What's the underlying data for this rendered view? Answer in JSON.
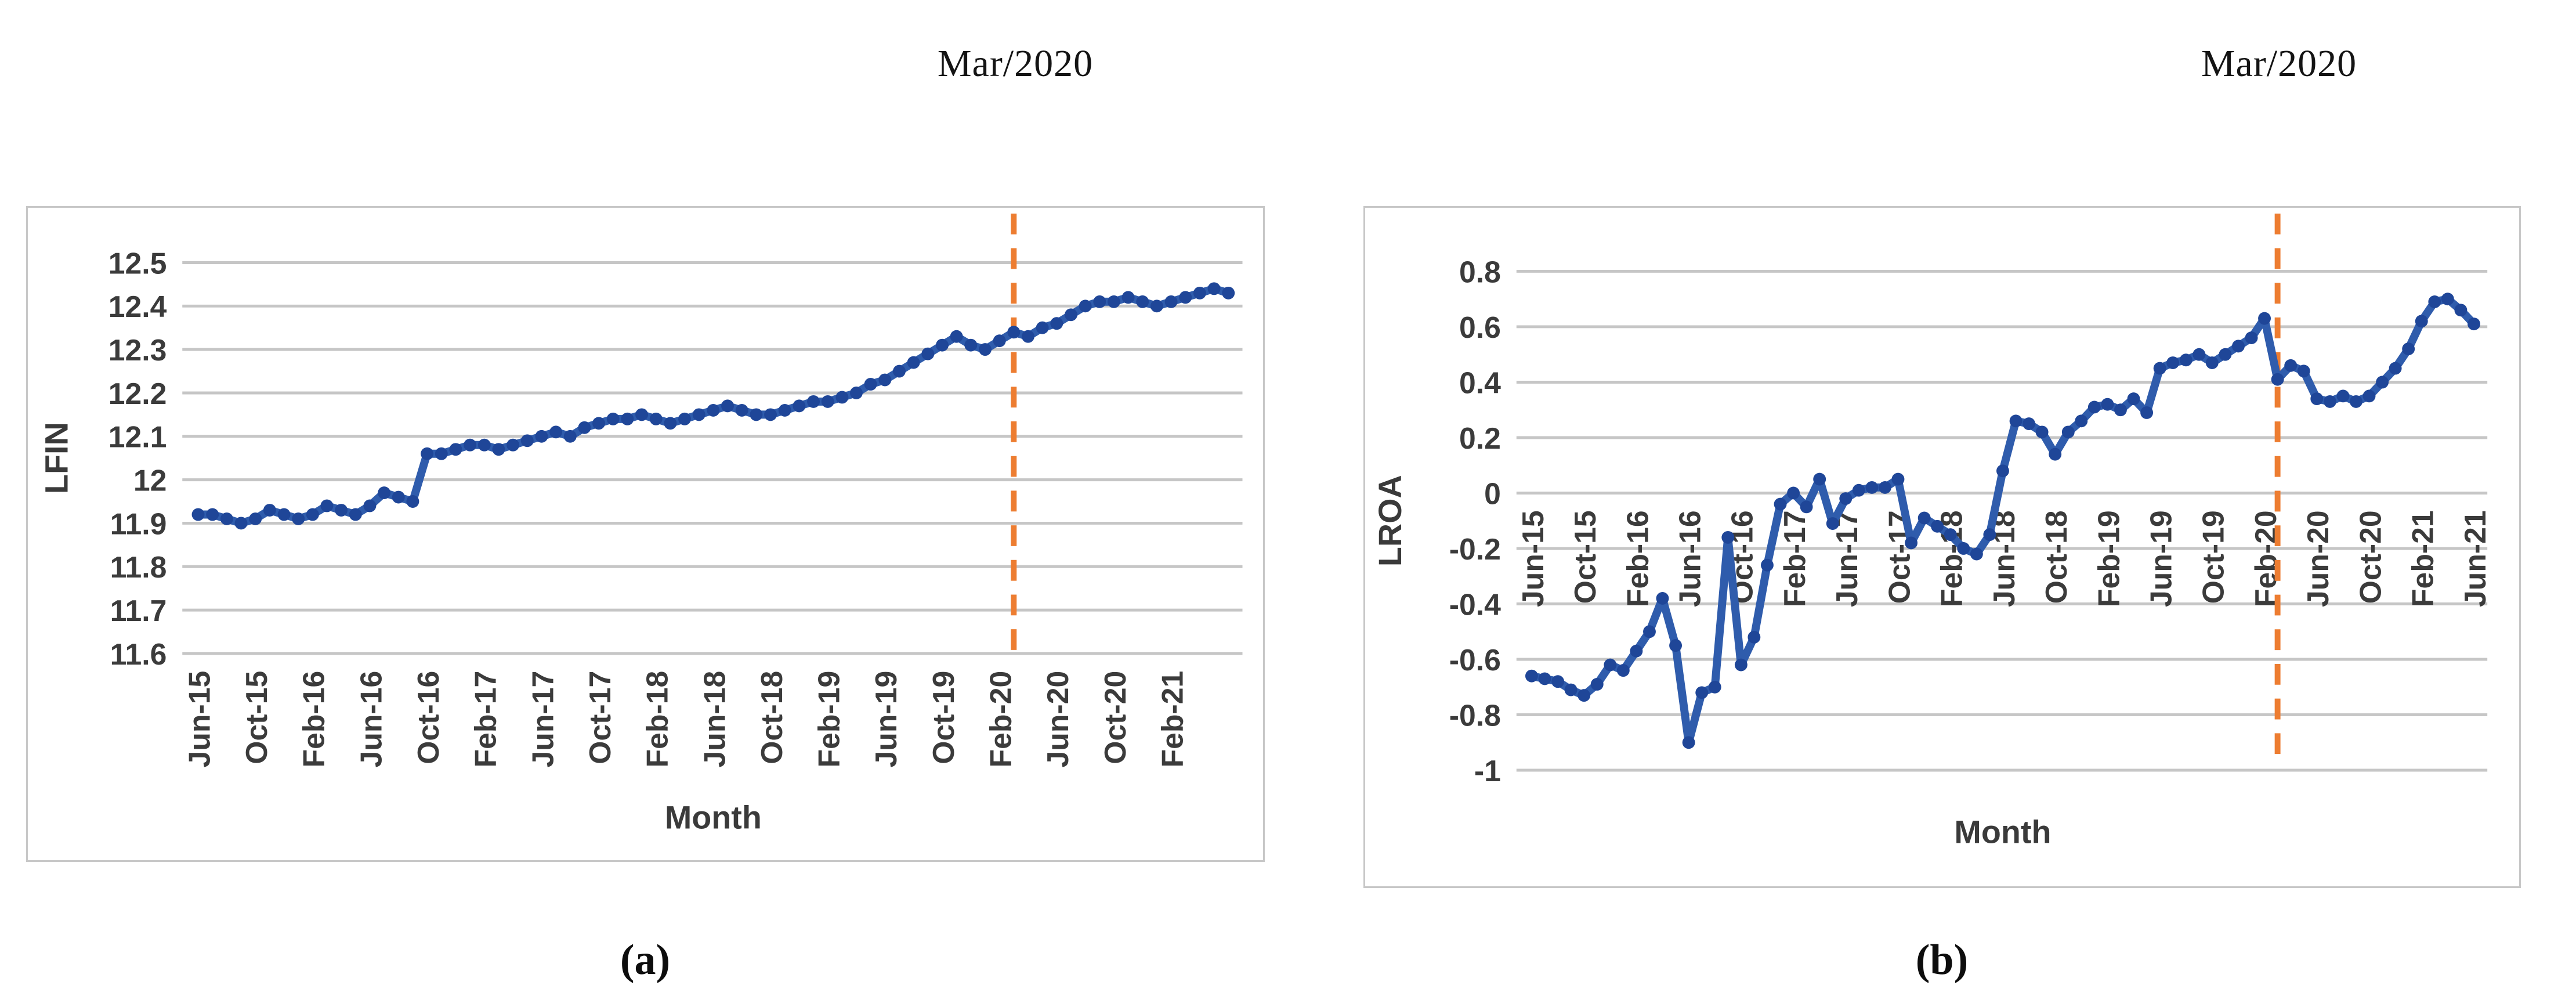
{
  "figure": {
    "panels": [
      {
        "caption": "(a)"
      },
      {
        "caption": "(b)"
      }
    ]
  },
  "chart_data": [
    {
      "id": "a",
      "type": "line",
      "ylabel": "LFIN",
      "xlabel": "Month",
      "caption": "(a)",
      "ylim": [
        11.6,
        12.5
      ],
      "ytick_labels": [
        "12.5",
        "12.4",
        "12.3",
        "12.2",
        "12.1",
        "12",
        "11.9",
        "11.8",
        "11.7",
        "11.6"
      ],
      "xtick_every": 4,
      "xtick_labels": [
        "Jun-15",
        "Oct-15",
        "Feb-16",
        "Jun-16",
        "Oct-16",
        "Feb-17",
        "Jun-17",
        "Oct-17",
        "Feb-18",
        "Jun-18",
        "Oct-18",
        "Feb-19",
        "Jun-19",
        "Oct-19",
        "Feb-20",
        "Jun-20",
        "Oct-20",
        "Feb-21"
      ],
      "x": [
        "Jun-15",
        "Jul-15",
        "Aug-15",
        "Sep-15",
        "Oct-15",
        "Nov-15",
        "Dec-15",
        "Jan-16",
        "Feb-16",
        "Mar-16",
        "Apr-16",
        "May-16",
        "Jun-16",
        "Jul-16",
        "Aug-16",
        "Sep-16",
        "Oct-16",
        "Nov-16",
        "Dec-16",
        "Jan-17",
        "Feb-17",
        "Mar-17",
        "Apr-17",
        "May-17",
        "Jun-17",
        "Jul-17",
        "Aug-17",
        "Sep-17",
        "Oct-17",
        "Nov-17",
        "Dec-17",
        "Jan-18",
        "Feb-18",
        "Mar-18",
        "Apr-18",
        "May-18",
        "Jun-18",
        "Jul-18",
        "Aug-18",
        "Sep-18",
        "Oct-18",
        "Nov-18",
        "Dec-18",
        "Jan-19",
        "Feb-19",
        "Mar-19",
        "Apr-19",
        "May-19",
        "Jun-19",
        "Jul-19",
        "Aug-19",
        "Sep-19",
        "Oct-19",
        "Nov-19",
        "Dec-19",
        "Jan-20",
        "Feb-20",
        "Mar-20",
        "Apr-20",
        "May-20",
        "Jun-20",
        "Jul-20",
        "Aug-20",
        "Sep-20",
        "Oct-20",
        "Nov-20",
        "Dec-20",
        "Jan-21",
        "Feb-21",
        "Mar-21",
        "Apr-21",
        "May-21",
        "Jun-21"
      ],
      "values": [
        11.92,
        11.92,
        11.91,
        11.9,
        11.91,
        11.93,
        11.92,
        11.91,
        11.92,
        11.94,
        11.93,
        11.92,
        11.94,
        11.97,
        11.96,
        11.95,
        12.06,
        12.06,
        12.07,
        12.08,
        12.08,
        12.07,
        12.08,
        12.09,
        12.1,
        12.11,
        12.1,
        12.12,
        12.13,
        12.14,
        12.14,
        12.15,
        12.14,
        12.13,
        12.14,
        12.15,
        12.16,
        12.17,
        12.16,
        12.15,
        12.15,
        12.16,
        12.17,
        12.18,
        12.18,
        12.19,
        12.2,
        12.22,
        12.23,
        12.25,
        12.27,
        12.29,
        12.31,
        12.33,
        12.31,
        12.3,
        12.32,
        12.34,
        12.33,
        12.35,
        12.36,
        12.38,
        12.4,
        12.41,
        12.41,
        12.42,
        12.41,
        12.4,
        12.41,
        12.42,
        12.43,
        12.44,
        12.43
      ],
      "vline": {
        "label": "Mar/2020",
        "at_month": "Mar-20",
        "index": 57
      },
      "colors": {
        "line": "#2f5cac",
        "marker": "#1f4698",
        "vline": "#ed7d31",
        "grid": "#c6c6c6",
        "text": "#3b3b3b"
      },
      "grid": true,
      "legend": null
    },
    {
      "id": "b",
      "type": "line",
      "ylabel": "LROA",
      "xlabel": "Month",
      "caption": "(b)",
      "ylim": [
        -1,
        0.8
      ],
      "ytick_labels": [
        "0.8",
        "0.6",
        "0.4",
        "0.2",
        "0",
        "-0.2",
        "-0.4",
        "-0.6",
        "-0.8",
        "-1"
      ],
      "xtick_every": 4,
      "xtick_labels": [
        "Jun-15",
        "Oct-15",
        "Feb-16",
        "Jun-16",
        "Oct-16",
        "Feb-17",
        "Jun-17",
        "Oct-17",
        "Feb-18",
        "Jun-18",
        "Oct-18",
        "Feb-19",
        "Jun-19",
        "Oct-19",
        "Feb-20",
        "Jun-20",
        "Oct-20",
        "Feb-21",
        "Jun-21"
      ],
      "x": [
        "Jun-15",
        "Jul-15",
        "Aug-15",
        "Sep-15",
        "Oct-15",
        "Nov-15",
        "Dec-15",
        "Jan-16",
        "Feb-16",
        "Mar-16",
        "Apr-16",
        "May-16",
        "Jun-16",
        "Jul-16",
        "Aug-16",
        "Sep-16",
        "Oct-16",
        "Nov-16",
        "Dec-16",
        "Jan-17",
        "Feb-17",
        "Mar-17",
        "Apr-17",
        "May-17",
        "Jun-17",
        "Jul-17",
        "Aug-17",
        "Sep-17",
        "Oct-17",
        "Nov-17",
        "Dec-17",
        "Jan-18",
        "Feb-18",
        "Mar-18",
        "Apr-18",
        "May-18",
        "Jun-18",
        "Jul-18",
        "Aug-18",
        "Sep-18",
        "Oct-18",
        "Nov-18",
        "Dec-18",
        "Jan-19",
        "Feb-19",
        "Mar-19",
        "Apr-19",
        "May-19",
        "Jun-19",
        "Jul-19",
        "Aug-19",
        "Sep-19",
        "Oct-19",
        "Nov-19",
        "Dec-19",
        "Jan-20",
        "Feb-20",
        "Mar-20",
        "Apr-20",
        "May-20",
        "Jun-20",
        "Jul-20",
        "Aug-20",
        "Sep-20",
        "Oct-20",
        "Nov-20",
        "Dec-20",
        "Jan-21",
        "Feb-21",
        "Mar-21",
        "Apr-21",
        "May-21",
        "Jun-21"
      ],
      "values": [
        -0.66,
        -0.67,
        -0.68,
        -0.71,
        -0.73,
        -0.69,
        -0.62,
        -0.64,
        -0.57,
        -0.5,
        -0.38,
        -0.55,
        -0.9,
        -0.72,
        -0.7,
        -0.16,
        -0.62,
        -0.52,
        -0.26,
        -0.04,
        0.0,
        -0.05,
        0.05,
        -0.11,
        -0.02,
        0.01,
        0.02,
        0.02,
        0.05,
        -0.18,
        -0.09,
        -0.12,
        -0.15,
        -0.2,
        -0.22,
        -0.15,
        0.08,
        0.26,
        0.25,
        0.22,
        0.14,
        0.22,
        0.26,
        0.31,
        0.32,
        0.3,
        0.34,
        0.29,
        0.45,
        0.47,
        0.48,
        0.5,
        0.47,
        0.5,
        0.53,
        0.56,
        0.63,
        0.41,
        0.46,
        0.44,
        0.34,
        0.33,
        0.35,
        0.33,
        0.35,
        0.4,
        0.45,
        0.52,
        0.62,
        0.69,
        0.7,
        0.66,
        0.61
      ],
      "vline": {
        "label": "Mar/2020",
        "at_month": "Mar-20",
        "index": 57
      },
      "colors": {
        "line": "#2f5cac",
        "marker": "#1f4698",
        "vline": "#ed7d31",
        "grid": "#c6c6c6",
        "text": "#3b3b3b"
      },
      "grid": true,
      "legend": null
    }
  ]
}
